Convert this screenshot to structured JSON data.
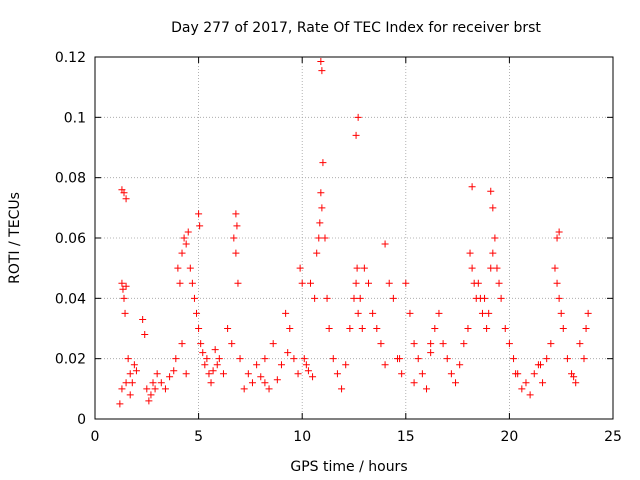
{
  "chart_data": {
    "type": "scatter",
    "title": "Day 277 of 2017, Rate Of TEC Index for receiver brst",
    "xlabel": "GPS time / hours",
    "ylabel": "ROTI / TECUs",
    "xlim": [
      0,
      25
    ],
    "ylim": [
      0,
      0.12
    ],
    "xticks": [
      0,
      5,
      10,
      15,
      20,
      25
    ],
    "xtick_labels": [
      "0",
      "5",
      "10",
      "15",
      "20",
      "25"
    ],
    "yticks": [
      0,
      0.02,
      0.04,
      0.06,
      0.08,
      0.1,
      0.12
    ],
    "ytick_labels": [
      "0",
      "0.02",
      "0.04",
      "0.06",
      "0.08",
      "0.1",
      "0.12"
    ],
    "grid": true,
    "marker": "+",
    "color": "#ff0000",
    "series": [
      {
        "name": "ROTI",
        "x": [
          1.2,
          1.3,
          1.35,
          1.4,
          1.45,
          1.5,
          1.3,
          1.4,
          1.5,
          1.6,
          1.7,
          1.8,
          1.9,
          2.0,
          1.3,
          1.5,
          1.7,
          2.3,
          2.4,
          2.5,
          2.6,
          2.7,
          2.8,
          2.9,
          3.0,
          3.2,
          3.4,
          3.6,
          3.8,
          4.0,
          4.1,
          4.2,
          4.3,
          4.4,
          4.5,
          4.6,
          4.7,
          4.8,
          4.9,
          5.0,
          5.1,
          5.2,
          5.3,
          5.4,
          5.5,
          5.6,
          5.7,
          5.8,
          5.9,
          6.0,
          6.2,
          6.4,
          6.6,
          6.7,
          6.8,
          6.9,
          7.0,
          7.2,
          7.4,
          7.6,
          7.8,
          8.0,
          8.2,
          8.4,
          8.6,
          8.8,
          9.0,
          9.2,
          9.4,
          9.6,
          9.8,
          9.9,
          10.0,
          10.1,
          10.2,
          10.4,
          10.6,
          10.7,
          10.8,
          10.85,
          10.9,
          10.95,
          11.0,
          11.1,
          11.2,
          11.3,
          11.5,
          11.7,
          11.9,
          12.1,
          12.3,
          12.5,
          12.6,
          12.65,
          12.7,
          12.8,
          12.9,
          13.0,
          13.2,
          13.4,
          13.6,
          13.8,
          14.0,
          14.2,
          14.4,
          14.6,
          14.8,
          15.0,
          15.2,
          15.4,
          15.6,
          15.8,
          16.0,
          16.2,
          16.4,
          16.6,
          16.8,
          17.0,
          17.2,
          17.4,
          17.6,
          17.8,
          18.0,
          18.1,
          18.2,
          18.3,
          18.4,
          18.5,
          18.6,
          18.7,
          18.8,
          18.9,
          19.0,
          19.1,
          19.2,
          19.3,
          19.4,
          19.5,
          19.6,
          19.8,
          20.0,
          20.2,
          20.4,
          20.6,
          20.8,
          21.0,
          21.2,
          21.4,
          21.6,
          21.8,
          22.0,
          22.2,
          22.3,
          22.4,
          22.5,
          22.6,
          22.8,
          23.0,
          23.2,
          23.4,
          23.6,
          23.7,
          23.8,
          5.0,
          5.05,
          6.8,
          6.85,
          10.9,
          10.95,
          12.6,
          12.7,
          18.2,
          19.1,
          19.2,
          22.3,
          22.4,
          3.9,
          4.2,
          4.4,
          8.2,
          9.3,
          10.3,
          10.5,
          14.0,
          14.7,
          15.4,
          16.2,
          20.3,
          21.5,
          23.1
        ],
        "y": [
          0.005,
          0.045,
          0.043,
          0.04,
          0.035,
          0.044,
          0.076,
          0.075,
          0.073,
          0.02,
          0.015,
          0.012,
          0.018,
          0.016,
          0.01,
          0.012,
          0.008,
          0.033,
          0.028,
          0.01,
          0.006,
          0.008,
          0.012,
          0.01,
          0.015,
          0.012,
          0.01,
          0.014,
          0.016,
          0.05,
          0.045,
          0.055,
          0.06,
          0.058,
          0.062,
          0.05,
          0.045,
          0.04,
          0.035,
          0.03,
          0.025,
          0.022,
          0.018,
          0.02,
          0.015,
          0.012,
          0.016,
          0.023,
          0.018,
          0.02,
          0.015,
          0.03,
          0.025,
          0.06,
          0.055,
          0.045,
          0.02,
          0.01,
          0.015,
          0.012,
          0.018,
          0.014,
          0.02,
          0.01,
          0.025,
          0.013,
          0.018,
          0.035,
          0.03,
          0.02,
          0.015,
          0.05,
          0.045,
          0.02,
          0.018,
          0.045,
          0.04,
          0.055,
          0.06,
          0.065,
          0.075,
          0.07,
          0.085,
          0.06,
          0.04,
          0.03,
          0.02,
          0.015,
          0.01,
          0.018,
          0.03,
          0.04,
          0.045,
          0.05,
          0.035,
          0.04,
          0.03,
          0.05,
          0.045,
          0.035,
          0.03,
          0.025,
          0.058,
          0.045,
          0.04,
          0.02,
          0.015,
          0.045,
          0.035,
          0.025,
          0.02,
          0.015,
          0.01,
          0.025,
          0.03,
          0.035,
          0.025,
          0.02,
          0.015,
          0.012,
          0.018,
          0.025,
          0.03,
          0.055,
          0.05,
          0.045,
          0.04,
          0.045,
          0.04,
          0.035,
          0.04,
          0.03,
          0.035,
          0.05,
          0.055,
          0.06,
          0.05,
          0.045,
          0.04,
          0.03,
          0.025,
          0.02,
          0.015,
          0.01,
          0.012,
          0.008,
          0.015,
          0.018,
          0.012,
          0.02,
          0.025,
          0.05,
          0.045,
          0.04,
          0.035,
          0.03,
          0.02,
          0.015,
          0.012,
          0.025,
          0.02,
          0.03,
          0.035,
          0.068,
          0.064,
          0.068,
          0.064,
          0.1185,
          0.1155,
          0.094,
          0.1,
          0.077,
          0.0755,
          0.07,
          0.06,
          0.062,
          0.02,
          0.025,
          0.015,
          0.012,
          0.022,
          0.016,
          0.014,
          0.018,
          0.02,
          0.012,
          0.022,
          0.015,
          0.018,
          0.014
        ]
      }
    ]
  }
}
